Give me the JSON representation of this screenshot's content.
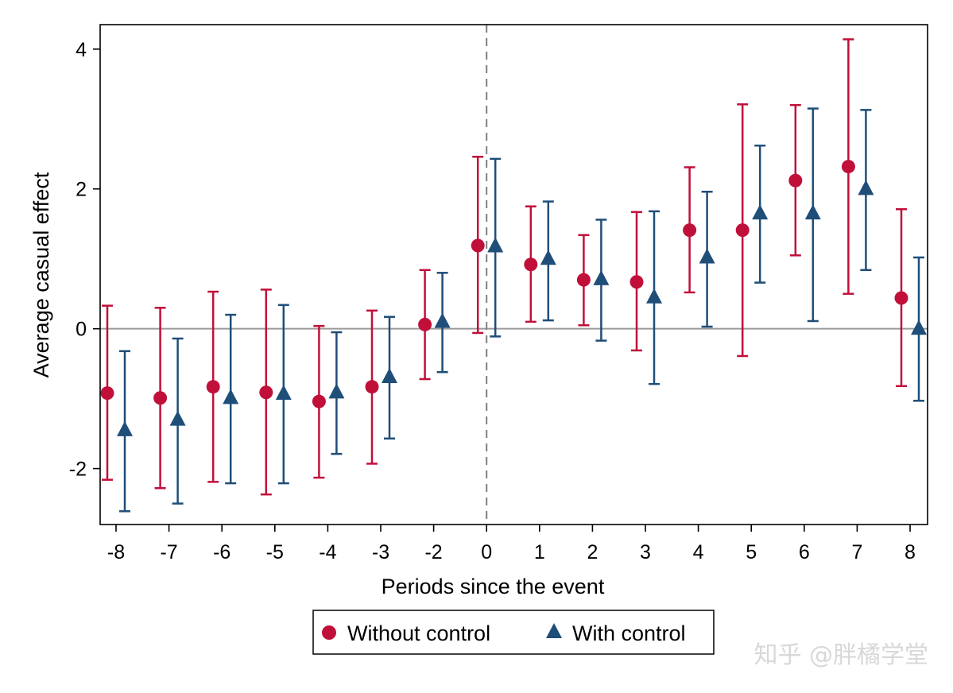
{
  "chart_data": {
    "type": "scatter",
    "xlabel": "Periods since the event",
    "ylabel": "Average casual effect",
    "categories": [
      "-8",
      "-7",
      "-6",
      "-5",
      "-4",
      "-3",
      "-2",
      "0",
      "1",
      "2",
      "3",
      "4",
      "5",
      "6",
      "7",
      "8"
    ],
    "ylim": [
      -2.8,
      4.35
    ],
    "yticks": [
      -2,
      0,
      2,
      4
    ],
    "ytick_labels": [
      "-2",
      "0",
      "2",
      "4"
    ],
    "reference_lines": {
      "horizontal_y": 0,
      "vertical_at_category": "0"
    },
    "grid": false,
    "legend": {
      "placement": "bottom",
      "boxed": true
    },
    "series": [
      {
        "name": "Without control",
        "marker": "circle",
        "color": "#c0103a",
        "values": [
          -0.92,
          -0.99,
          -0.83,
          -0.91,
          -1.04,
          -0.83,
          0.06,
          1.19,
          0.92,
          0.7,
          0.67,
          1.41,
          1.41,
          2.12,
          2.32,
          0.44
        ],
        "ci_low": [
          -2.16,
          -2.28,
          -2.19,
          -2.37,
          -2.13,
          -1.93,
          -0.72,
          -0.06,
          0.1,
          0.05,
          -0.31,
          0.52,
          -0.39,
          1.05,
          0.5,
          -0.82
        ],
        "ci_high": [
          0.33,
          0.3,
          0.53,
          0.56,
          0.04,
          0.26,
          0.84,
          2.46,
          1.75,
          1.34,
          1.67,
          2.31,
          3.21,
          3.2,
          4.14,
          1.71
        ]
      },
      {
        "name": "With control",
        "marker": "triangle",
        "color": "#1f4e79",
        "values": [
          -1.45,
          -1.3,
          -0.99,
          -0.93,
          -0.91,
          -0.69,
          0.1,
          1.18,
          1.0,
          0.71,
          0.45,
          1.02,
          1.65,
          1.65,
          2.0,
          0.0
        ],
        "ci_low": [
          -2.61,
          -2.5,
          -2.21,
          -2.21,
          -1.79,
          -1.57,
          -0.62,
          -0.11,
          0.12,
          -0.17,
          -0.79,
          0.03,
          0.66,
          0.11,
          0.84,
          -1.03
        ],
        "ci_high": [
          -0.32,
          -0.14,
          0.2,
          0.34,
          -0.05,
          0.17,
          0.8,
          2.43,
          1.82,
          1.56,
          1.68,
          1.96,
          2.62,
          3.15,
          3.13,
          1.02
        ]
      }
    ]
  },
  "watermark": "知乎 @胖橘学堂"
}
